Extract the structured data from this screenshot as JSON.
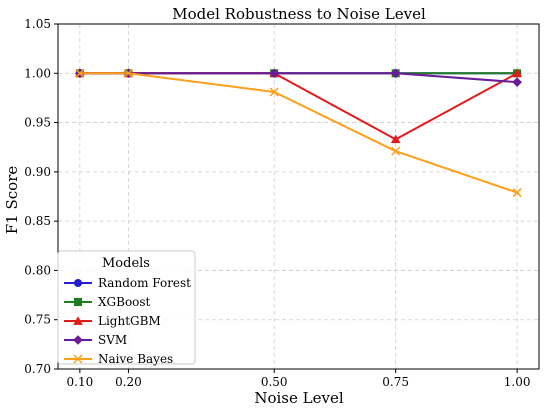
{
  "chart_data": {
    "type": "line",
    "title": "Model Robustness to Noise Level",
    "xlabel": "Noise Level",
    "ylabel": "F1 Score",
    "x": [
      0.1,
      0.2,
      0.5,
      0.75,
      1.0
    ],
    "x_tick_labels": [
      "0.10",
      "0.20",
      "0.50",
      "0.75",
      "1.00"
    ],
    "y_ticks": [
      0.7,
      0.75,
      0.8,
      0.85,
      0.9,
      0.95,
      1.0,
      1.05
    ],
    "y_tick_labels": [
      "0.70",
      "0.75",
      "0.80",
      "0.85",
      "0.90",
      "0.95",
      "1.00",
      "1.05"
    ],
    "xlim": [
      0.055,
      1.045
    ],
    "ylim": [
      0.7,
      1.05
    ],
    "grid": true,
    "legend": {
      "title": "Models",
      "position": "lower-left"
    },
    "series": [
      {
        "name": "Random Forest",
        "color": "#1f1fcc",
        "marker": "circle",
        "values": [
          1.0,
          1.0,
          1.0,
          1.0,
          1.0
        ]
      },
      {
        "name": "XGBoost",
        "color": "#1e7d1e",
        "marker": "square",
        "values": [
          1.0,
          1.0,
          1.0,
          1.0,
          1.0
        ]
      },
      {
        "name": "LightGBM",
        "color": "#e31a1c",
        "marker": "triangle",
        "values": [
          1.0,
          1.0,
          1.0,
          0.933,
          1.0
        ]
      },
      {
        "name": "SVM",
        "color": "#6a1b9a",
        "marker": "diamond",
        "values": [
          1.0,
          1.0,
          1.0,
          1.0,
          0.991
        ]
      },
      {
        "name": "Naive Bayes",
        "color": "#ff9f1a",
        "marker": "x",
        "values": [
          1.0,
          1.0,
          0.981,
          0.921,
          0.879
        ]
      }
    ]
  }
}
